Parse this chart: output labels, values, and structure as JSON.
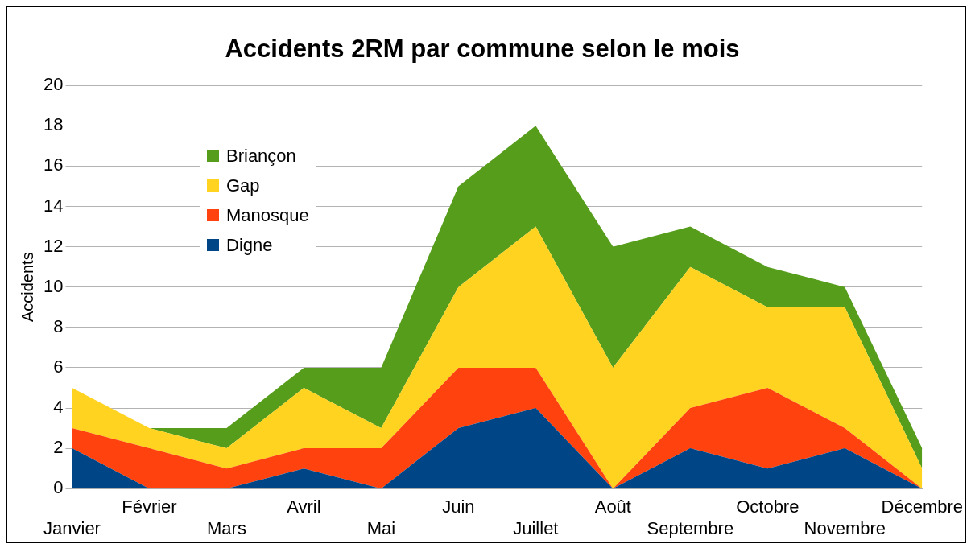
{
  "chart_data": {
    "type": "area",
    "title": "Accidents 2RM par commune selon le mois",
    "ylabel": "Accidents",
    "categories": [
      "Janvier",
      "Février",
      "Mars",
      "Avril",
      "Mai",
      "Juin",
      "Juillet",
      "Août",
      "Septembre",
      "Octobre",
      "Novembre",
      "Décembre"
    ],
    "stacked": true,
    "series": [
      {
        "name": "Digne",
        "color": "#004586",
        "values": [
          2,
          0,
          0,
          1,
          0,
          3,
          4,
          0,
          2,
          1,
          2,
          0
        ]
      },
      {
        "name": "Manosque",
        "color": "#ff420e",
        "values": [
          1,
          2,
          1,
          1,
          2,
          3,
          2,
          0,
          2,
          4,
          1,
          0
        ]
      },
      {
        "name": "Gap",
        "color": "#ffd320",
        "values": [
          2,
          1,
          1,
          3,
          1,
          4,
          7,
          6,
          7,
          4,
          6,
          1
        ]
      },
      {
        "name": "Briançon",
        "color": "#579d1c",
        "values": [
          0,
          0,
          1,
          1,
          3,
          5,
          5,
          6,
          2,
          2,
          1,
          1
        ]
      }
    ],
    "ylim": [
      0,
      20
    ],
    "yticks": [
      0,
      2,
      4,
      6,
      8,
      10,
      12,
      14,
      16,
      18,
      20
    ],
    "grid": "y",
    "legend": "top left"
  }
}
